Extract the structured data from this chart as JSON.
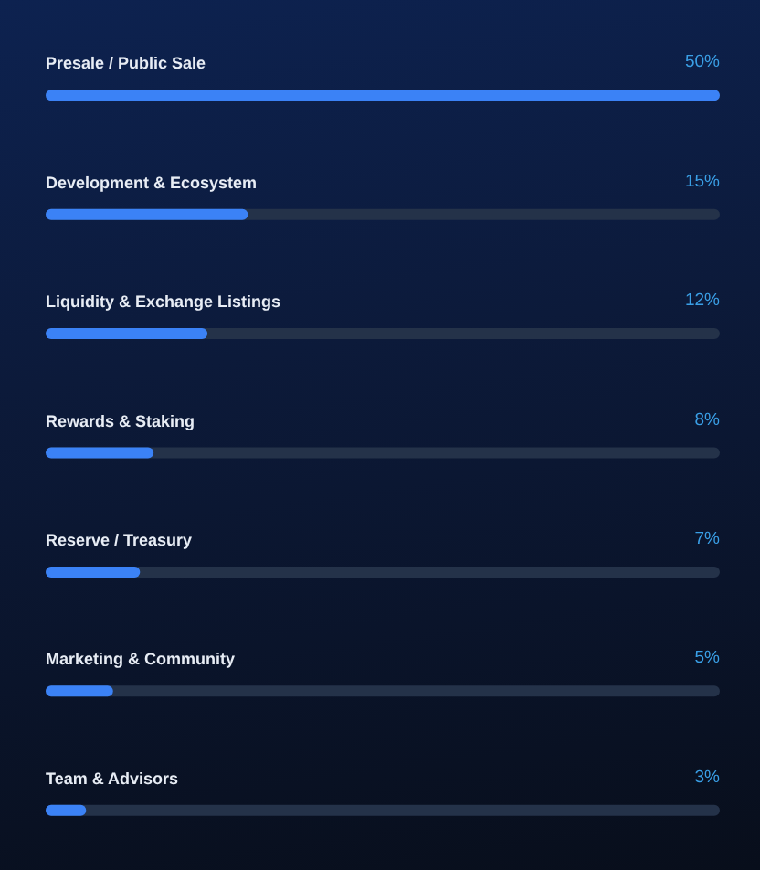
{
  "chart_data": {
    "type": "bar",
    "orientation": "horizontal",
    "categories": [
      "Presale / Public Sale",
      "Development & Ecosystem",
      "Liquidity & Exchange Listings",
      "Rewards & Staking",
      "Reserve / Treasury",
      "Marketing & Community",
      "Team & Advisors"
    ],
    "values": [
      50,
      15,
      12,
      8,
      7,
      5,
      3
    ],
    "value_labels": [
      "50%",
      "15%",
      "12%",
      "8%",
      "7%",
      "5%",
      "3%"
    ],
    "color": "#3b82f6",
    "xlim": [
      0,
      50
    ],
    "tick_labels": "y"
  }
}
